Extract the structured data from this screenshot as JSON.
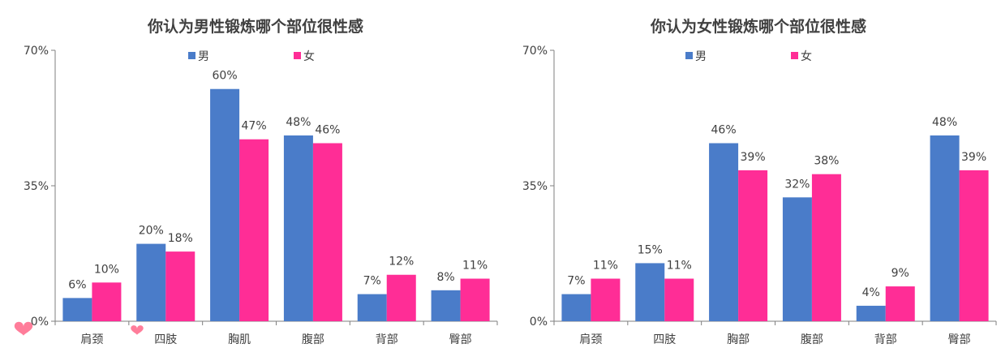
{
  "colors": {
    "male": "#4a7cc9",
    "female": "#ff2d96",
    "axis": "#7f7f7f",
    "heart": "#ff6f8f"
  },
  "decorations": [
    "heart-icon",
    "heart-icon"
  ],
  "chart_data": [
    {
      "type": "bar",
      "title": "你认为男性锻炼哪个部位很性感",
      "categories": [
        "肩颈",
        "四肢",
        "胸肌",
        "腹部",
        "背部",
        "臀部"
      ],
      "series": [
        {
          "name": "男",
          "values": [
            6,
            20,
            60,
            48,
            7,
            8
          ],
          "labels": [
            "6%",
            "20%",
            "60%",
            "48%",
            "7%",
            "8%"
          ]
        },
        {
          "name": "女",
          "values": [
            10,
            18,
            47,
            46,
            12,
            11
          ],
          "labels": [
            "10%",
            "18%",
            "47%",
            "46%",
            "12%",
            "11%"
          ]
        }
      ],
      "ylim": [
        0,
        70
      ],
      "yticks": [
        "0%",
        "35%",
        "70%"
      ],
      "ytick_values": [
        0,
        35,
        70
      ],
      "legend_position": "top",
      "grid": false
    },
    {
      "type": "bar",
      "title": "你认为女性锻炼哪个部位很性感",
      "categories": [
        "肩颈",
        "四肢",
        "胸部",
        "腹部",
        "背部",
        "臀部"
      ],
      "series": [
        {
          "name": "男",
          "values": [
            7,
            15,
            46,
            32,
            4,
            48
          ],
          "labels": [
            "7%",
            "15%",
            "46%",
            "32%",
            "4%",
            "48%"
          ]
        },
        {
          "name": "女",
          "values": [
            11,
            11,
            39,
            38,
            9,
            39
          ],
          "labels": [
            "11%",
            "11%",
            "39%",
            "38%",
            "9%",
            "39%"
          ]
        }
      ],
      "ylim": [
        0,
        70
      ],
      "yticks": [
        "0%",
        "35%",
        "70%"
      ],
      "ytick_values": [
        0,
        35,
        70
      ],
      "legend_position": "top",
      "grid": false
    }
  ]
}
